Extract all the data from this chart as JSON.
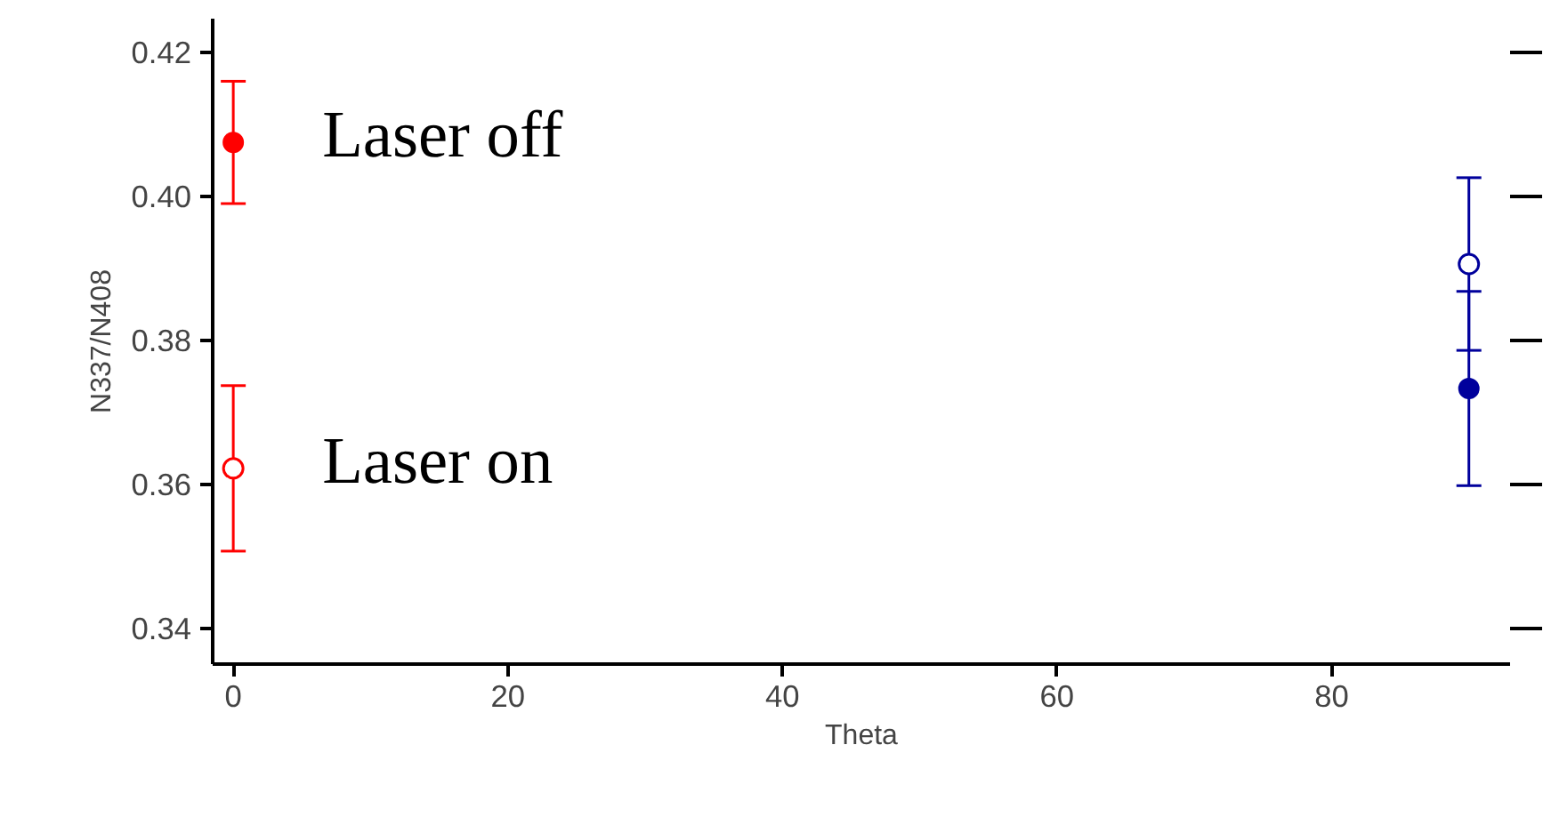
{
  "chart_data": {
    "type": "scatter",
    "xlabel": "Theta",
    "ylabel": "N337/N408",
    "xlim": [
      -1.5,
      93
    ],
    "ylim": [
      0.335,
      0.4247
    ],
    "xticks": [
      0,
      20,
      40,
      60,
      80
    ],
    "yticks": [
      0.34,
      0.36,
      0.38,
      {
        "value": 0.4,
        "label": "0.40"
      },
      0.42
    ],
    "grid": false,
    "marker": "circle",
    "x": [
      0,
      90
    ],
    "series": [
      {
        "name": "Laser off",
        "values": [
          0.4075,
          0.3733
        ],
        "errors": [
          0.0085,
          0.0135
        ],
        "colors": [
          "#ff0000",
          "#00009c"
        ]
      },
      {
        "name": "Laser on",
        "values": [
          0.3622,
          0.3906
        ],
        "errors": [
          0.0115,
          0.012
        ],
        "colors": [
          "#ff0000",
          "#00009c"
        ],
        "marker": "circle_open"
      }
    ]
  }
}
